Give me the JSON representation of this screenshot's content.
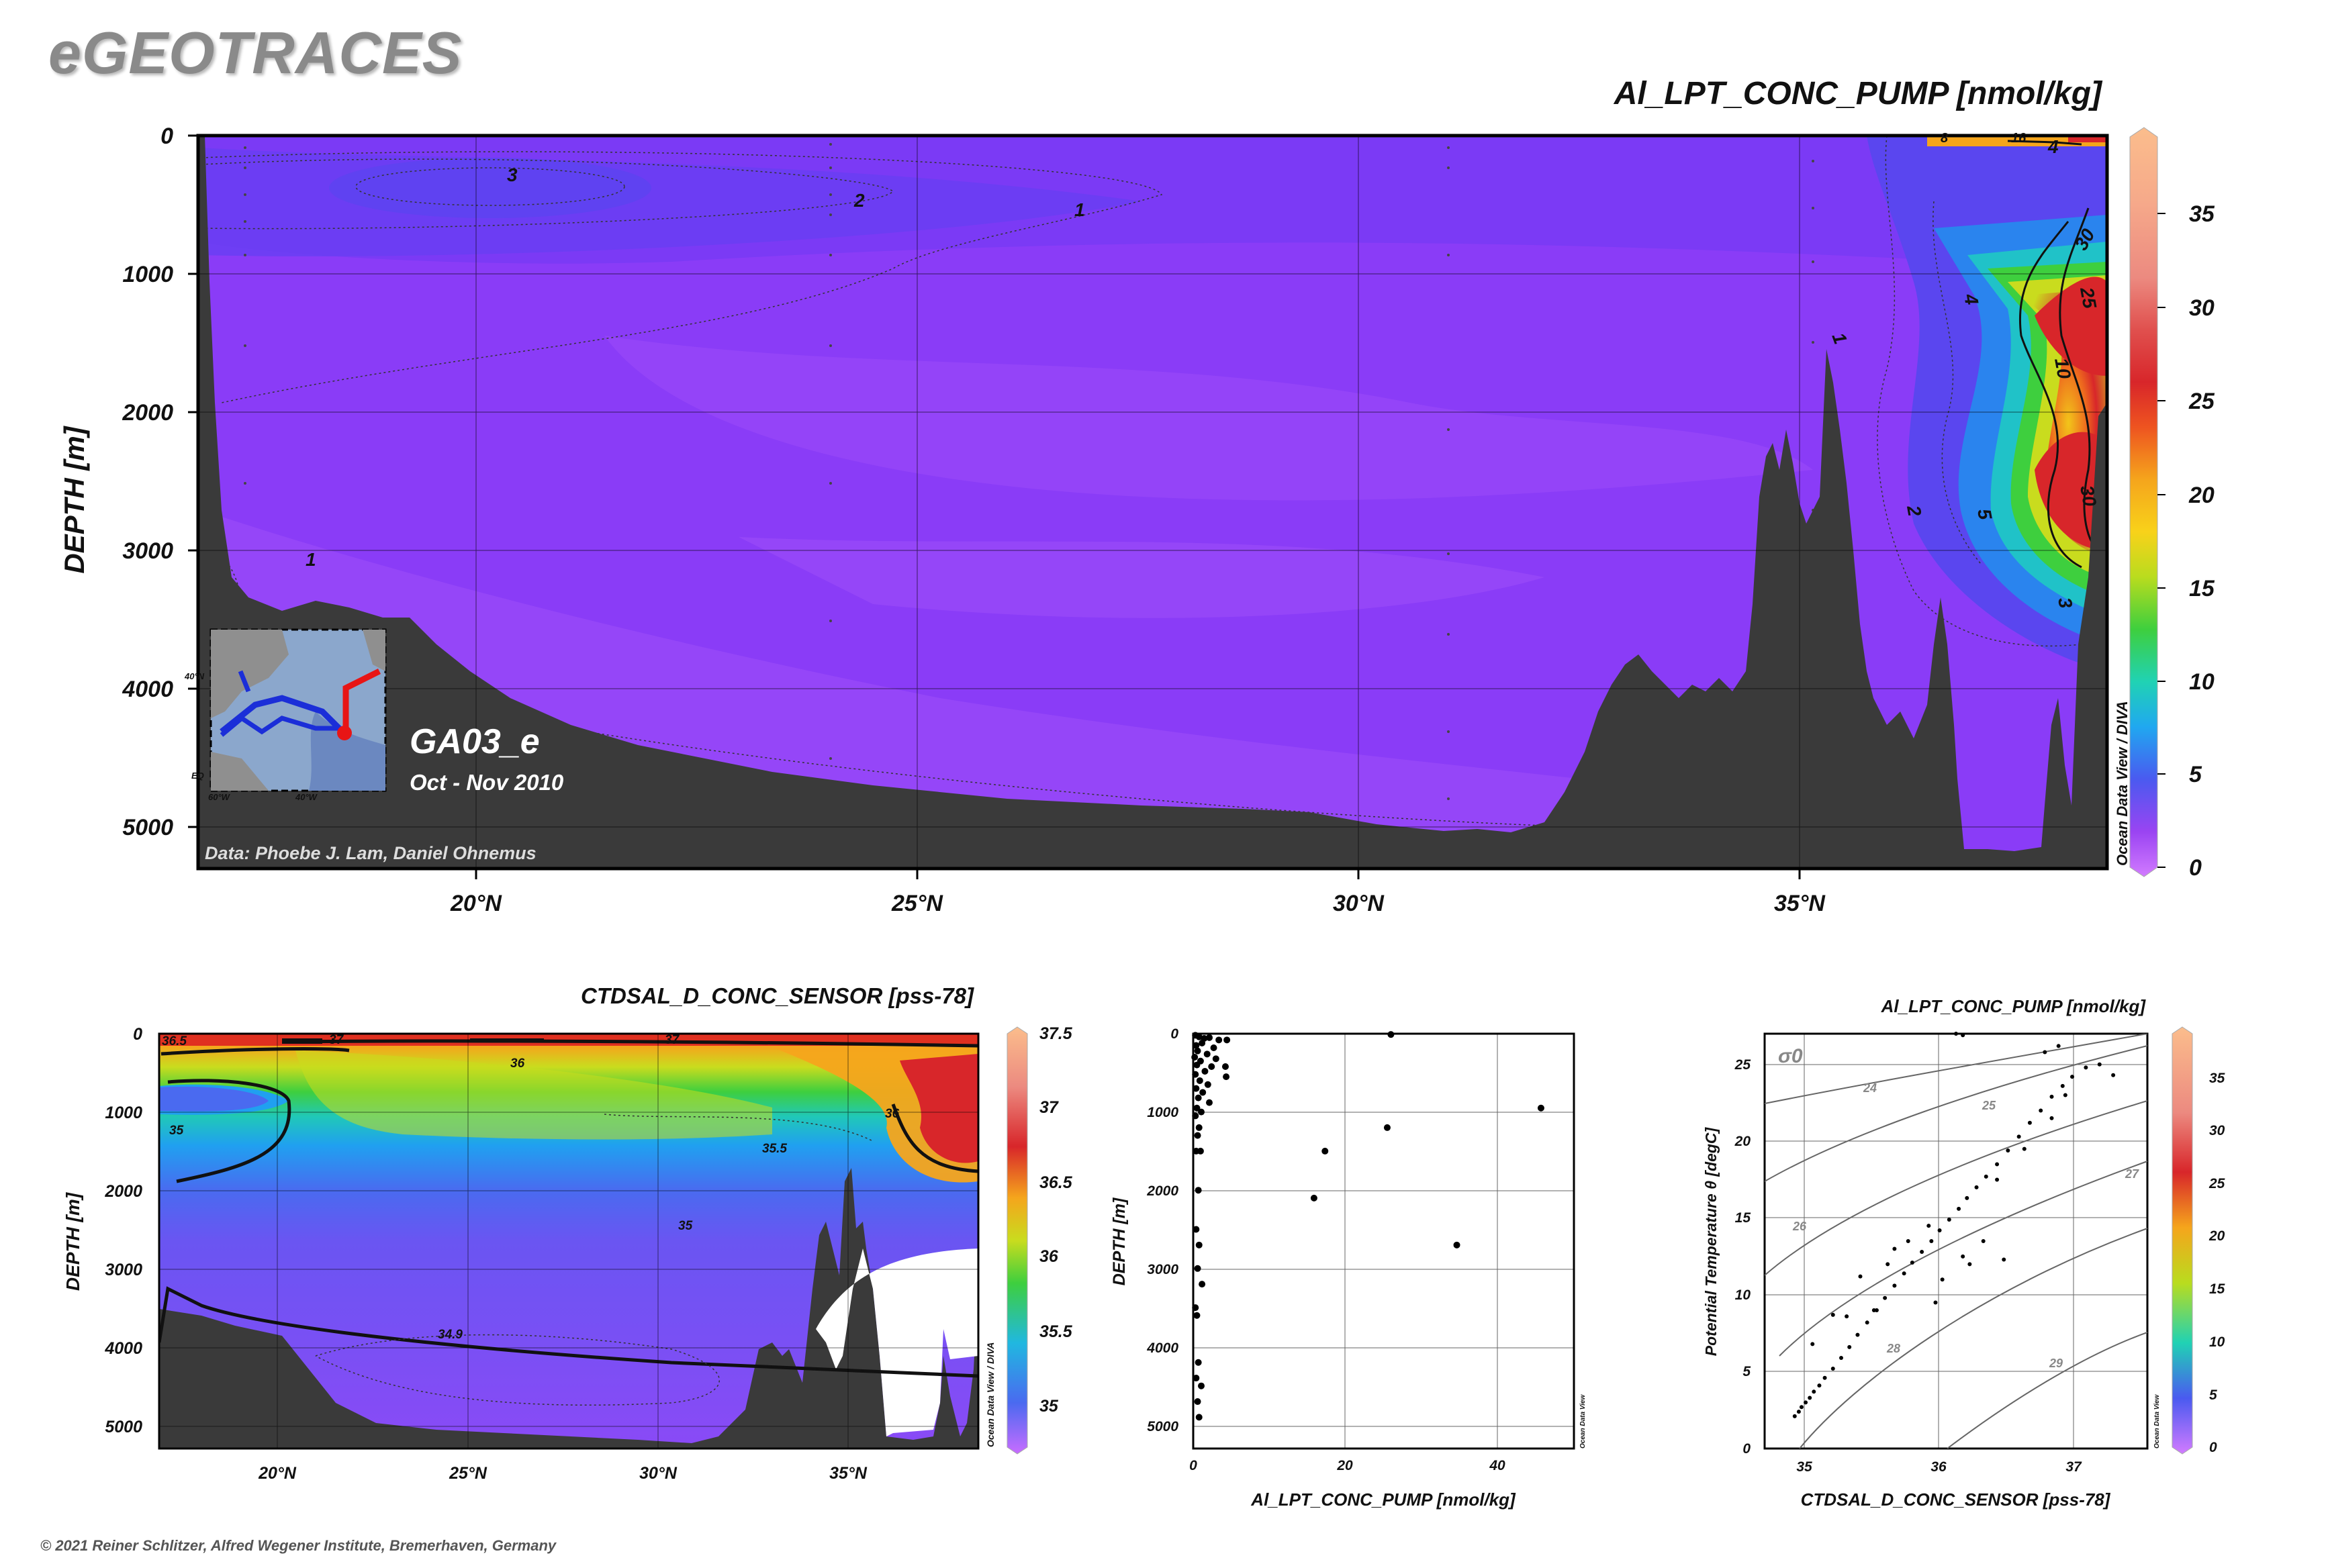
{
  "brand": "eGEOTRACES",
  "copyright": "© 2021 Reiner Schlitzer, Alfred Wegener Institute, Bremerhaven, Germany",
  "main_section": {
    "title": "Al_LPT_CONC_PUMP [nmol/kg]",
    "ylabel": "DEPTH [m]",
    "y_ticks": [
      "0",
      "1000",
      "2000",
      "3000",
      "4000",
      "5000"
    ],
    "x_ticks": [
      "20°N",
      "25°N",
      "30°N",
      "35°N"
    ],
    "cruise": "GA03_e",
    "period": "Oct - Nov 2010",
    "credit": "Data: Phoebe J. Lam, Daniel Ohnemus",
    "odv_label": "Ocean Data View / DIVA",
    "contour_labels": [
      "3",
      "2",
      "1",
      "1",
      "1",
      "4",
      "2",
      "5",
      "3",
      "10",
      "30",
      "25",
      "30",
      "4",
      "8",
      "16"
    ],
    "colorbar_ticks": [
      "35",
      "30",
      "25",
      "20",
      "15",
      "10",
      "5",
      "0"
    ],
    "inset_labels": [
      "40°N",
      "60°W",
      "40°W",
      "EQ"
    ]
  },
  "sal_section": {
    "title": "CTDSAL_D_CONC_SENSOR [pss-78]",
    "ylabel": "DEPTH [m]",
    "y_ticks": [
      "0",
      "1000",
      "2000",
      "3000",
      "4000",
      "5000"
    ],
    "x_ticks": [
      "20°N",
      "25°N",
      "30°N",
      "35°N"
    ],
    "odv_label": "Ocean Data View / DIVA",
    "contour_labels": [
      "36.5",
      "37",
      "37",
      "36",
      "35",
      "35.5",
      "36",
      "35",
      "34.9"
    ],
    "colorbar_ticks": [
      "37.5",
      "37",
      "36.5",
      "36",
      "35.5",
      "35"
    ]
  },
  "profile": {
    "xlabel": "Al_LPT_CONC_PUMP [nmol/kg]",
    "ylabel": "DEPTH [m]",
    "y_ticks": [
      "0",
      "1000",
      "2000",
      "3000",
      "4000",
      "5000"
    ],
    "x_ticks": [
      "0",
      "20",
      "40"
    ],
    "odv_label": "Ocean Data View"
  },
  "ts_plot": {
    "title": "Al_LPT_CONC_PUMP [nmol/kg]",
    "xlabel": "CTDSAL_D_CONC_SENSOR [pss-78]",
    "ylabel": "Potential Temperature θ [degC]",
    "sigma_label": "σ0",
    "x_ticks": [
      "35",
      "36",
      "37"
    ],
    "y_ticks": [
      "0",
      "5",
      "10",
      "15",
      "20",
      "25"
    ],
    "density_labels": [
      "24",
      "25",
      "26",
      "27",
      "28",
      "29"
    ],
    "odv_label": "Ocean Data View",
    "colorbar_ticks": [
      "35",
      "30",
      "25",
      "20",
      "15",
      "10",
      "5",
      "0"
    ]
  },
  "colors": {
    "ocean_base": "#8a3cf7",
    "seafloor": "#3a3a3a",
    "axis": "#000000"
  },
  "chart_data": [
    {
      "type": "heatmap",
      "title": "Al_LPT_CONC_PUMP [nmol/kg]",
      "ylabel": "DEPTH [m]",
      "xlim_deg_N": [
        16.8,
        38.5
      ],
      "ylim_m": [
        5300,
        0
      ],
      "colorbar_range": [
        0,
        38
      ],
      "features": [
        {
          "feature": "maximum core",
          "lat_N": [
            37.6,
            38.4
          ],
          "depth_m": [
            700,
            3200
          ],
          "value": 30
        },
        {
          "feature": "surface minimum contour",
          "lat_N": [
            19.5,
            21.5
          ],
          "depth_m": [
            250,
            450
          ],
          "value": 3
        }
      ]
    },
    {
      "type": "heatmap",
      "title": "CTDSAL_D_CONC_SENSOR [pss-78]",
      "ylabel": "DEPTH [m]",
      "xlim_deg_N": [
        16.8,
        38.5
      ],
      "ylim_m": [
        5300,
        0
      ],
      "colorbar_range": [
        34.8,
        37.5
      ]
    },
    {
      "type": "scatter",
      "xlabel": "Al_LPT_CONC_PUMP [nmol/kg]",
      "ylabel": "DEPTH [m]",
      "xlim": [
        0,
        52
      ],
      "ylim": [
        5300,
        0
      ],
      "points": [
        [
          0.3,
          20
        ],
        [
          0.8,
          40
        ],
        [
          1.5,
          60
        ],
        [
          2.2,
          50
        ],
        [
          3.5,
          80
        ],
        [
          1.2,
          120
        ],
        [
          0.4,
          150
        ],
        [
          2.8,
          180
        ],
        [
          0.6,
          220
        ],
        [
          1.9,
          260
        ],
        [
          0.2,
          300
        ],
        [
          3.1,
          320
        ],
        [
          1.0,
          350
        ],
        [
          0.5,
          400
        ],
        [
          2.5,
          420
        ],
        [
          1.6,
          480
        ],
        [
          0.3,
          520
        ],
        [
          4.5,
          550
        ],
        [
          0.9,
          600
        ],
        [
          2.0,
          650
        ],
        [
          0.4,
          700
        ],
        [
          1.3,
          750
        ],
        [
          0.7,
          820
        ],
        [
          2.2,
          880
        ],
        [
          0.5,
          950
        ],
        [
          1.1,
          1000
        ],
        [
          0.3,
          1050
        ],
        [
          0.8,
          1200
        ],
        [
          0.6,
          1300
        ],
        [
          0.4,
          1500
        ],
        [
          1.0,
          1500
        ],
        [
          0.7,
          2000
        ],
        [
          0.4,
          2500
        ],
        [
          0.8,
          2700
        ],
        [
          0.6,
          3000
        ],
        [
          1.2,
          3200
        ],
        [
          0.3,
          3500
        ],
        [
          0.5,
          3600
        ],
        [
          0.7,
          4200
        ],
        [
          0.4,
          4400
        ],
        [
          1.1,
          4500
        ],
        [
          0.6,
          4700
        ],
        [
          0.8,
          4900
        ],
        [
          4.6,
          80
        ],
        [
          4.4,
          420
        ],
        [
          27,
          10
        ],
        [
          26.5,
          1200
        ],
        [
          18,
          1500
        ],
        [
          16.5,
          2100
        ],
        [
          36,
          2700
        ],
        [
          47.5,
          950
        ]
      ]
    },
    {
      "type": "scatter",
      "xlabel": "CTDSAL_D_CONC_SENSOR [pss-78]",
      "ylabel": "Potential Temperature θ [degC]",
      "xlim": [
        34.7,
        37.5
      ],
      "ylim": [
        0,
        27
      ],
      "density_isolines_sigma0": [
        24,
        25,
        26,
        27,
        28,
        29
      ],
      "points": [
        [
          34.92,
          2.1
        ],
        [
          34.95,
          2.4
        ],
        [
          34.97,
          2.7
        ],
        [
          35.0,
          3.0
        ],
        [
          35.03,
          3.3
        ],
        [
          35.06,
          3.7
        ],
        [
          35.1,
          4.1
        ],
        [
          35.14,
          4.6
        ],
        [
          35.2,
          5.2
        ],
        [
          35.26,
          5.9
        ],
        [
          35.32,
          6.6
        ],
        [
          35.38,
          7.4
        ],
        [
          35.45,
          8.2
        ],
        [
          35.52,
          9.0
        ],
        [
          35.58,
          9.8
        ],
        [
          35.65,
          10.6
        ],
        [
          35.72,
          11.4
        ],
        [
          35.78,
          12.1
        ],
        [
          35.85,
          12.8
        ],
        [
          35.92,
          13.5
        ],
        [
          35.98,
          14.2
        ],
        [
          36.05,
          14.9
        ],
        [
          36.12,
          15.6
        ],
        [
          36.18,
          16.3
        ],
        [
          36.25,
          17.0
        ],
        [
          36.32,
          17.7
        ],
        [
          36.4,
          18.5
        ],
        [
          36.48,
          19.4
        ],
        [
          36.56,
          20.3
        ],
        [
          36.64,
          21.2
        ],
        [
          36.72,
          22.0
        ],
        [
          36.8,
          22.9
        ],
        [
          36.88,
          23.6
        ],
        [
          36.95,
          24.2
        ],
        [
          37.05,
          24.8
        ],
        [
          37.15,
          25.0
        ],
        [
          37.25,
          24.3
        ],
        [
          35.05,
          6.8
        ],
        [
          35.2,
          8.7
        ],
        [
          35.3,
          8.6
        ],
        [
          35.5,
          9.0
        ],
        [
          35.6,
          12.0
        ],
        [
          35.75,
          13.5
        ],
        [
          35.9,
          14.5
        ],
        [
          36.0,
          11.0
        ],
        [
          36.15,
          12.5
        ],
        [
          36.3,
          13.5
        ],
        [
          36.45,
          12.3
        ],
        [
          36.2,
          12.0
        ],
        [
          35.95,
          9.5
        ],
        [
          36.4,
          17.5
        ],
        [
          36.6,
          19.5
        ],
        [
          36.8,
          21.5
        ],
        [
          36.9,
          23.0
        ],
        [
          36.75,
          25.8
        ],
        [
          36.85,
          26.2
        ],
        [
          36.1,
          27.0
        ],
        [
          36.15,
          26.9
        ],
        [
          35.4,
          11.2
        ],
        [
          35.65,
          13.0
        ]
      ]
    }
  ]
}
